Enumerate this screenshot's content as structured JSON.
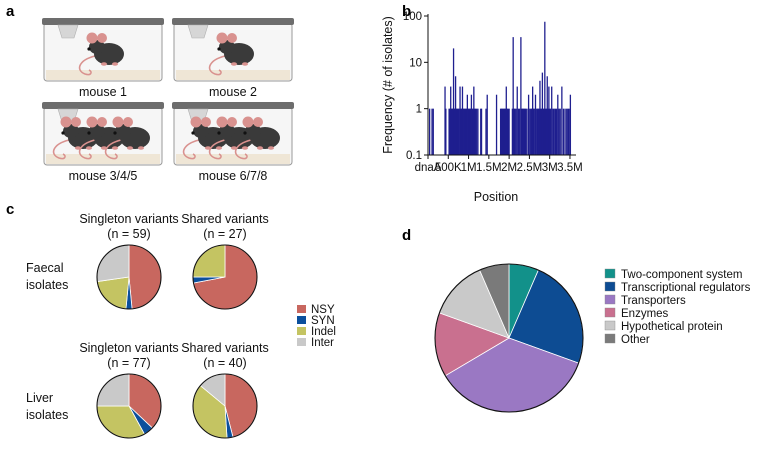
{
  "panel_labels": {
    "a": "a",
    "b": "b",
    "c": "c",
    "d": "d"
  },
  "panel_a": {
    "cages": [
      {
        "label": "mouse 1",
        "mice": 1
      },
      {
        "label": "mouse 2",
        "mice": 1
      },
      {
        "label": "mouse 3/4/5",
        "mice": 3
      },
      {
        "label": "mouse 6/7/8",
        "mice": 3
      }
    ]
  },
  "colors": {
    "bar": "#1f1f8f",
    "NSY": "#c8675f",
    "SYN": "#0b4f9c",
    "Indel": "#c4c462",
    "Inter": "#c9c9c9",
    "two_component": "#12918a",
    "transcriptional": "#0d4c93",
    "transporters": "#9a78c3",
    "enzymes": "#c9708f",
    "hypothetical": "#c9c9c9",
    "other": "#7a7a7a"
  },
  "chart_data": [
    {
      "type": "bar",
      "id": "b",
      "xlabel": "Position",
      "ylabel": "Frequency (# of isolates)",
      "yscale": "log",
      "ylim": [
        0.1,
        100
      ],
      "y_ticks": [
        0.1,
        1,
        10,
        100
      ],
      "y_tick_labels": [
        "0.1",
        "1",
        "10",
        "100"
      ],
      "x_range": [
        0,
        3550000
      ],
      "x_ticks": [
        0,
        500000,
        1000000,
        1500000,
        2000000,
        2500000,
        3000000,
        3500000
      ],
      "x_tick_labels": [
        "dnaA",
        "500K",
        "1M",
        "1.5M",
        "2M",
        "2.5M",
        "3M",
        "3.5M"
      ],
      "x": [
        40000,
        100000,
        130000,
        420000,
        440000,
        520000,
        540000,
        560000,
        580000,
        600000,
        615000,
        630000,
        650000,
        665000,
        680000,
        700000,
        720000,
        740000,
        760000,
        790000,
        810000,
        830000,
        850000,
        870000,
        890000,
        910000,
        930000,
        950000,
        970000,
        990000,
        1010000,
        1030000,
        1050000,
        1070000,
        1090000,
        1110000,
        1130000,
        1150000,
        1170000,
        1200000,
        1230000,
        1300000,
        1320000,
        1430000,
        1460000,
        1690000,
        1790000,
        1810000,
        1830000,
        1850000,
        1870000,
        1890000,
        1910000,
        1930000,
        1950000,
        1970000,
        2000000,
        2080000,
        2100000,
        2120000,
        2140000,
        2170000,
        2200000,
        2230000,
        2260000,
        2290000,
        2310000,
        2330000,
        2350000,
        2370000,
        2390000,
        2410000,
        2440000,
        2480000,
        2510000,
        2540000,
        2560000,
        2580000,
        2600000,
        2620000,
        2650000,
        2680000,
        2700000,
        2720000,
        2740000,
        2760000,
        2780000,
        2800000,
        2820000,
        2840000,
        2860000,
        2880000,
        2900000,
        2920000,
        2940000,
        2960000,
        2980000,
        3000000,
        3020000,
        3050000,
        3080000,
        3110000,
        3140000,
        3170000,
        3200000,
        3230000,
        3260000,
        3300000,
        3340000,
        3380000,
        3420000,
        3450000,
        3480000,
        3510000
      ],
      "values": [
        1,
        1,
        1,
        3,
        1,
        1,
        1,
        3,
        1,
        1,
        1,
        20,
        1,
        1,
        5,
        1,
        1,
        1,
        1,
        3,
        1,
        1,
        3,
        1,
        1,
        1,
        1,
        1,
        2,
        1,
        1,
        1,
        1,
        2,
        1,
        1,
        3,
        1,
        1,
        1,
        1,
        1,
        1,
        1,
        2,
        2,
        1,
        1,
        1,
        1,
        1,
        1,
        1,
        3,
        1,
        1,
        1,
        1,
        35,
        1,
        1,
        1,
        3,
        1,
        1,
        35,
        1,
        1,
        1,
        1,
        1,
        1,
        1,
        2,
        1,
        1,
        1,
        3,
        1,
        1,
        2,
        1,
        1,
        1,
        1,
        4,
        1,
        1,
        6,
        1,
        1,
        75,
        1,
        1,
        5,
        1,
        3,
        1,
        1,
        3,
        1,
        1,
        1,
        1,
        2,
        1,
        1,
        3,
        1,
        1,
        1,
        1,
        1,
        2
      ]
    },
    {
      "type": "pie",
      "id": "c",
      "row_labels": [
        {
          "line1": "Faecal",
          "line2": "isolates"
        },
        {
          "line1": "Liver",
          "line2": "isolates"
        }
      ],
      "legend": [
        "NSY",
        "SYN",
        "Indel",
        "Inter"
      ],
      "pies": [
        {
          "title": "Singleton variants",
          "n_label": "(n = 59)",
          "values": [
            48,
            3,
            21,
            27
          ]
        },
        {
          "title": "Shared variants",
          "n_label": "(n = 27)",
          "values": [
            72,
            3,
            25,
            0
          ]
        },
        {
          "title": "Singleton variants",
          "n_label": "(n = 77)",
          "values": [
            37,
            5,
            33,
            25
          ]
        },
        {
          "title": "Shared variants",
          "n_label": "(n = 40)",
          "values": [
            46,
            3,
            37,
            14
          ]
        }
      ]
    },
    {
      "type": "pie",
      "id": "d",
      "categories": [
        "Two-component system",
        "Transcriptional regulators",
        "Transporters",
        "Enzymes",
        "Hypothetical protein",
        "Other"
      ],
      "values": [
        6.5,
        24,
        36,
        14,
        13,
        6.5
      ]
    }
  ]
}
